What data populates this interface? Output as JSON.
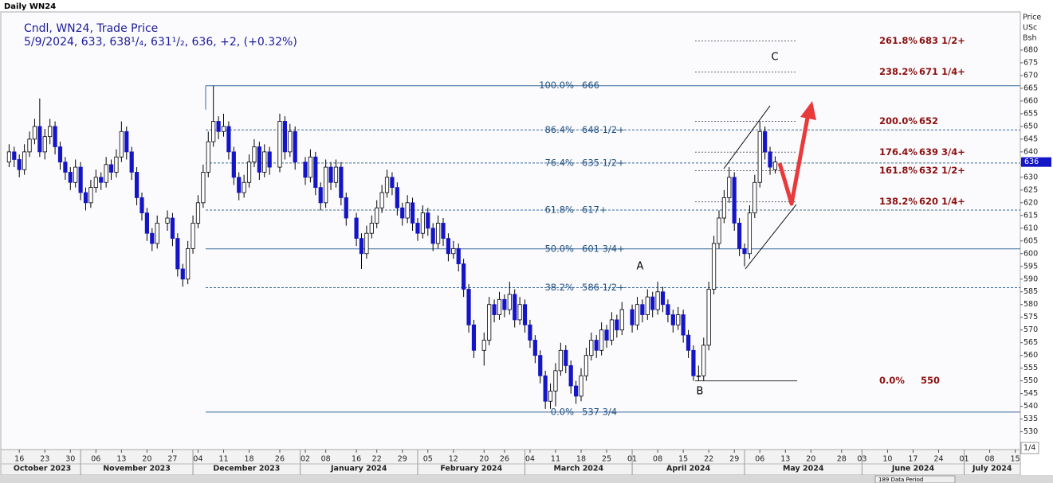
{
  "chart_data": {
    "type": "candlestick",
    "title": "Daily WN24",
    "legend": [
      "Cndl, WN24, Trade Price",
      "5/9/2024, 633, 638¹/₄, 631¹/₂, 636, +2, (+0.32%)"
    ],
    "axis_header": [
      "Price",
      "USc",
      "Bsh"
    ],
    "footer": [
      "1/4",
      "189 Data Period"
    ],
    "up_color": "#ffffff",
    "down_color": "#1515c8",
    "ylim": [
      523,
      695
    ],
    "yticks": [
      530,
      535,
      540,
      545,
      550,
      555,
      560,
      565,
      570,
      575,
      580,
      585,
      590,
      595,
      600,
      605,
      610,
      615,
      620,
      625,
      630,
      635,
      640,
      645,
      650,
      655,
      660,
      665,
      670,
      675,
      680
    ],
    "xlim": [
      "2023-10-11",
      "2024-07-16"
    ],
    "xticks": [
      {
        "value": "2023-10-16",
        "label": "16"
      },
      {
        "value": "2023-10-23",
        "label": "23"
      },
      {
        "value": "2023-10-30",
        "label": "30"
      },
      {
        "value": "2023-11-06",
        "label": "06"
      },
      {
        "value": "2023-11-13",
        "label": "13"
      },
      {
        "value": "2023-11-20",
        "label": "20"
      },
      {
        "value": "2023-11-27",
        "label": "27"
      },
      {
        "value": "2023-12-04",
        "label": "04"
      },
      {
        "value": "2023-12-11",
        "label": "11"
      },
      {
        "value": "2023-12-18",
        "label": "18"
      },
      {
        "value": "2023-12-26",
        "label": "26"
      },
      {
        "value": "2024-01-02",
        "label": "02"
      },
      {
        "value": "2024-01-08",
        "label": "08"
      },
      {
        "value": "2024-01-16",
        "label": "16"
      },
      {
        "value": "2024-01-22",
        "label": "22"
      },
      {
        "value": "2024-01-29",
        "label": "29"
      },
      {
        "value": "2024-02-05",
        "label": "05"
      },
      {
        "value": "2024-02-12",
        "label": "12"
      },
      {
        "value": "2024-02-20",
        "label": "20"
      },
      {
        "value": "2024-02-26",
        "label": "26"
      },
      {
        "value": "2024-03-04",
        "label": "04"
      },
      {
        "value": "2024-03-11",
        "label": "11"
      },
      {
        "value": "2024-03-18",
        "label": "18"
      },
      {
        "value": "2024-03-25",
        "label": "25"
      },
      {
        "value": "2024-04-01",
        "label": "01"
      },
      {
        "value": "2024-04-08",
        "label": "08"
      },
      {
        "value": "2024-04-15",
        "label": "15"
      },
      {
        "value": "2024-04-22",
        "label": "22"
      },
      {
        "value": "2024-04-29",
        "label": "29"
      },
      {
        "value": "2024-05-06",
        "label": "06"
      },
      {
        "value": "2024-05-13",
        "label": "13"
      },
      {
        "value": "2024-05-20",
        "label": "20"
      },
      {
        "value": "2024-05-28",
        "label": "28"
      },
      {
        "value": "2024-06-03",
        "label": "03"
      },
      {
        "value": "2024-06-10",
        "label": "10"
      },
      {
        "value": "2024-06-17",
        "label": "17"
      },
      {
        "value": "2024-06-24",
        "label": "24"
      },
      {
        "value": "2024-07-01",
        "label": "01"
      },
      {
        "value": "2024-07-08",
        "label": "08"
      },
      {
        "value": "2024-07-15",
        "label": "15"
      }
    ],
    "months": [
      {
        "value": "2023-10",
        "label": "October 2023"
      },
      {
        "value": "2023-11",
        "label": "November 2023"
      },
      {
        "value": "2023-12",
        "label": "December 2023"
      },
      {
        "value": "2024-01",
        "label": "January 2024"
      },
      {
        "value": "2024-02",
        "label": "February 2024"
      },
      {
        "value": "2024-03",
        "label": "March 2024"
      },
      {
        "value": "2024-04",
        "label": "April 2024"
      },
      {
        "value": "2024-05",
        "label": "May 2024"
      },
      {
        "value": "2024-06",
        "label": "June 2024"
      },
      {
        "value": "2024-07",
        "label": "July 2024"
      }
    ],
    "x": [
      "2023-10-12",
      "2023-10-13",
      "2023-10-16",
      "2023-10-17",
      "2023-10-18",
      "2023-10-19",
      "2023-10-20",
      "2023-10-23",
      "2023-10-24",
      "2023-10-25",
      "2023-10-26",
      "2023-10-27",
      "2023-10-30",
      "2023-10-31",
      "2023-11-01",
      "2023-11-02",
      "2023-11-03",
      "2023-11-06",
      "2023-11-07",
      "2023-11-08",
      "2023-11-09",
      "2023-11-10",
      "2023-11-13",
      "2023-11-14",
      "2023-11-15",
      "2023-11-16",
      "2023-11-17",
      "2023-11-20",
      "2023-11-21",
      "2023-11-22",
      "2023-11-24",
      "2023-11-27",
      "2023-11-28",
      "2023-11-29",
      "2023-11-30",
      "2023-12-01",
      "2023-12-04",
      "2023-12-05",
      "2023-12-06",
      "2023-12-07",
      "2023-12-08",
      "2023-12-11",
      "2023-12-12",
      "2023-12-13",
      "2023-12-14",
      "2023-12-15",
      "2023-12-18",
      "2023-12-19",
      "2023-12-20",
      "2023-12-21",
      "2023-12-22",
      "2023-12-26",
      "2023-12-27",
      "2023-12-28",
      "2023-12-29",
      "2024-01-02",
      "2024-01-03",
      "2024-01-04",
      "2024-01-05",
      "2024-01-08",
      "2024-01-09",
      "2024-01-10",
      "2024-01-11",
      "2024-01-12",
      "2024-01-16",
      "2024-01-17",
      "2024-01-18",
      "2024-01-19",
      "2024-01-22",
      "2024-01-23",
      "2024-01-24",
      "2024-01-25",
      "2024-01-26",
      "2024-01-29",
      "2024-01-30",
      "2024-01-31",
      "2024-02-01",
      "2024-02-02",
      "2024-02-05",
      "2024-02-06",
      "2024-02-07",
      "2024-02-08",
      "2024-02-09",
      "2024-02-12",
      "2024-02-13",
      "2024-02-14",
      "2024-02-15",
      "2024-02-16",
      "2024-02-20",
      "2024-02-21",
      "2024-02-22",
      "2024-02-23",
      "2024-02-26",
      "2024-02-27",
      "2024-02-28",
      "2024-02-29",
      "2024-03-01",
      "2024-03-04",
      "2024-03-05",
      "2024-03-06",
      "2024-03-07",
      "2024-03-08",
      "2024-03-11",
      "2024-03-12",
      "2024-03-13",
      "2024-03-14",
      "2024-03-15",
      "2024-03-18",
      "2024-03-19",
      "2024-03-20",
      "2024-03-21",
      "2024-03-22",
      "2024-03-25",
      "2024-03-26",
      "2024-03-27",
      "2024-03-28",
      "2024-04-01",
      "2024-04-02",
      "2024-04-03",
      "2024-04-04",
      "2024-04-05",
      "2024-04-08",
      "2024-04-09",
      "2024-04-10",
      "2024-04-11",
      "2024-04-12",
      "2024-04-15",
      "2024-04-16",
      "2024-04-17",
      "2024-04-18",
      "2024-04-19",
      "2024-04-22",
      "2024-04-23",
      "2024-04-24",
      "2024-04-25",
      "2024-04-26",
      "2024-04-29",
      "2024-04-30",
      "2024-05-01",
      "2024-05-02",
      "2024-05-03",
      "2024-05-06",
      "2024-05-07",
      "2024-05-08",
      "2024-05-09"
    ],
    "ohlc": [
      [
        636,
        643,
        634,
        640
      ],
      [
        640,
        642,
        634,
        637
      ],
      [
        637,
        639,
        630,
        633
      ],
      [
        633,
        643,
        631,
        640
      ],
      [
        640,
        648,
        638,
        645
      ],
      [
        645,
        653,
        643,
        650
      ],
      [
        650,
        661,
        638,
        640
      ],
      [
        640,
        649,
        637,
        646
      ],
      [
        646,
        653,
        643,
        650
      ],
      [
        650,
        652,
        639,
        642
      ],
      [
        642,
        644,
        633,
        636
      ],
      [
        636,
        638,
        629,
        632
      ],
      [
        632,
        634,
        625,
        628
      ],
      [
        628,
        637,
        626,
        634
      ],
      [
        634,
        636,
        621,
        624
      ],
      [
        624,
        626,
        617,
        620
      ],
      [
        620,
        629,
        618,
        626
      ],
      [
        626,
        633,
        624,
        630
      ],
      [
        630,
        632,
        625,
        628
      ],
      [
        628,
        638,
        626,
        635
      ],
      [
        635,
        637,
        629,
        632
      ],
      [
        632,
        641,
        630,
        638
      ],
      [
        638,
        652,
        636,
        648
      ],
      [
        648,
        650,
        637,
        640
      ],
      [
        640,
        642,
        629,
        632
      ],
      [
        632,
        634,
        619,
        622
      ],
      [
        622,
        624,
        613,
        616
      ],
      [
        616,
        618,
        605,
        608
      ],
      [
        608,
        610,
        601,
        604
      ],
      [
        604,
        615,
        602,
        612
      ],
      [
        612,
        617,
        609,
        614
      ],
      [
        614,
        616,
        603,
        606
      ],
      [
        606,
        608,
        591,
        594
      ],
      [
        594,
        596,
        587,
        590
      ],
      [
        590,
        605,
        588,
        602
      ],
      [
        602,
        615,
        600,
        612
      ],
      [
        612,
        623,
        610,
        620
      ],
      [
        620,
        635,
        618,
        632
      ],
      [
        632,
        648,
        630,
        644
      ],
      [
        644,
        666,
        642,
        652
      ],
      [
        652,
        654,
        645,
        648
      ],
      [
        648,
        655,
        646,
        650
      ],
      [
        650,
        652,
        637,
        640
      ],
      [
        640,
        642,
        627,
        630
      ],
      [
        630,
        632,
        621,
        624
      ],
      [
        624,
        631,
        622,
        628
      ],
      [
        628,
        639,
        626,
        636
      ],
      [
        636,
        645,
        634,
        642
      ],
      [
        642,
        644,
        629,
        632
      ],
      [
        632,
        643,
        630,
        640
      ],
      [
        640,
        642,
        631,
        634
      ],
      [
        634,
        655,
        632,
        652
      ],
      [
        652,
        654,
        637,
        640
      ],
      [
        640,
        651,
        638,
        648
      ],
      [
        648,
        650,
        633,
        636
      ],
      [
        636,
        638,
        627,
        630
      ],
      [
        630,
        641,
        628,
        638
      ],
      [
        638,
        640,
        623,
        626
      ],
      [
        626,
        628,
        617,
        620
      ],
      [
        620,
        637,
        618,
        634
      ],
      [
        634,
        636,
        625,
        628
      ],
      [
        628,
        637,
        626,
        634
      ],
      [
        634,
        636,
        619,
        622
      ],
      [
        622,
        624,
        611,
        614
      ],
      [
        614,
        616,
        603,
        606
      ],
      [
        606,
        608,
        594,
        600
      ],
      [
        600,
        611,
        598,
        608
      ],
      [
        608,
        615,
        606,
        612
      ],
      [
        612,
        621,
        610,
        618
      ],
      [
        618,
        627,
        616,
        624
      ],
      [
        624,
        633,
        622,
        630
      ],
      [
        630,
        632,
        623,
        626
      ],
      [
        626,
        628,
        615,
        618
      ],
      [
        618,
        620,
        611,
        614
      ],
      [
        614,
        623,
        612,
        620
      ],
      [
        620,
        622,
        609,
        612
      ],
      [
        612,
        614,
        605,
        608
      ],
      [
        608,
        619,
        606,
        616
      ],
      [
        616,
        618,
        607,
        610
      ],
      [
        610,
        612,
        601,
        604
      ],
      [
        604,
        615,
        602,
        612
      ],
      [
        612,
        614,
        603,
        606
      ],
      [
        606,
        608,
        597,
        600
      ],
      [
        600,
        605,
        598,
        602
      ],
      [
        602,
        604,
        593,
        596
      ],
      [
        596,
        598,
        583,
        586
      ],
      [
        586,
        588,
        569,
        572
      ],
      [
        572,
        574,
        559,
        562
      ],
      [
        562,
        569,
        556,
        566
      ],
      [
        566,
        583,
        564,
        580
      ],
      [
        580,
        582,
        573,
        576
      ],
      [
        576,
        585,
        574,
        582
      ],
      [
        582,
        584,
        575,
        578
      ],
      [
        578,
        589,
        576,
        584
      ],
      [
        584,
        586,
        571,
        574
      ],
      [
        574,
        583,
        572,
        580
      ],
      [
        580,
        582,
        569,
        572
      ],
      [
        572,
        574,
        563,
        566
      ],
      [
        566,
        568,
        557,
        560
      ],
      [
        560,
        562,
        549,
        552
      ],
      [
        552,
        554,
        539,
        542
      ],
      [
        542,
        549,
        539,
        546
      ],
      [
        546,
        557,
        540,
        554
      ],
      [
        554,
        565,
        552,
        562
      ],
      [
        562,
        564,
        553,
        556
      ],
      [
        556,
        558,
        545,
        548
      ],
      [
        548,
        550,
        541,
        544
      ],
      [
        544,
        555,
        542,
        552
      ],
      [
        552,
        563,
        550,
        560
      ],
      [
        560,
        569,
        558,
        566
      ],
      [
        566,
        568,
        559,
        562
      ],
      [
        562,
        573,
        560,
        570
      ],
      [
        570,
        572,
        563,
        566
      ],
      [
        566,
        577,
        564,
        574
      ],
      [
        574,
        576,
        567,
        570
      ],
      [
        570,
        581,
        568,
        578
      ],
      [
        578,
        580,
        569,
        572
      ],
      [
        572,
        583,
        570,
        580
      ],
      [
        580,
        582,
        573,
        576
      ],
      [
        576,
        586,
        574,
        583
      ],
      [
        583,
        585,
        575,
        578
      ],
      [
        578,
        589,
        576,
        585
      ],
      [
        585,
        587,
        577,
        580
      ],
      [
        580,
        582,
        573,
        576
      ],
      [
        576,
        578,
        569,
        572
      ],
      [
        572,
        579,
        570,
        576
      ],
      [
        576,
        578,
        565,
        568
      ],
      [
        568,
        570,
        559,
        562
      ],
      [
        562,
        564,
        550,
        552
      ],
      [
        552,
        556,
        550,
        552
      ],
      [
        552,
        567,
        550,
        564
      ],
      [
        564,
        589,
        562,
        586
      ],
      [
        586,
        607,
        584,
        604
      ],
      [
        604,
        617,
        602,
        614
      ],
      [
        614,
        625,
        612,
        622
      ],
      [
        622,
        634,
        620,
        630
      ],
      [
        630,
        632,
        609,
        612
      ],
      [
        612,
        614,
        599,
        602
      ],
      [
        602,
        604,
        595,
        600
      ],
      [
        600,
        619,
        598,
        616
      ],
      [
        616,
        631,
        614,
        628
      ],
      [
        628,
        652,
        626,
        648
      ],
      [
        648,
        650,
        637,
        640
      ],
      [
        640,
        642,
        631,
        634
      ],
      [
        633,
        638.25,
        631.5,
        636
      ]
    ],
    "retracements": [
      {
        "pct": "100.0%",
        "value": 666,
        "style": "solid"
      },
      {
        "pct": "86.4%",
        "value": 648.625,
        "value_label": "648 1/2+",
        "style": "dashed"
      },
      {
        "pct": "76.4%",
        "value": 635.625,
        "value_label": "635 1/2+",
        "style": "dashed"
      },
      {
        "pct": "61.8%",
        "value": 617.125,
        "value_label": "617+",
        "style": "dashed"
      },
      {
        "pct": "50.0%",
        "value": 601.875,
        "value_label": "601 3/4+",
        "style": "solid"
      },
      {
        "pct": "38.2%",
        "value": 586.625,
        "value_label": "586 1/2+",
        "style": "dashed"
      },
      {
        "pct": "0.0%",
        "value": 537.75,
        "value_label": "537 3/4",
        "style": "solid"
      }
    ],
    "extensions": [
      {
        "pct": "261.8%",
        "value": 683.625,
        "value_label": "683 1/2+",
        "style": "dashed"
      },
      {
        "pct": "238.2%",
        "value": 671.375,
        "value_label": "671 1/4+",
        "style": "dashed"
      },
      {
        "pct": "200.0%",
        "value": 652,
        "style": "dashed"
      },
      {
        "pct": "176.4%",
        "value": 639.875,
        "value_label": "639 3/4+",
        "style": "dashed"
      },
      {
        "pct": "161.8%",
        "value": 632.625,
        "value_label": "632 1/2+",
        "style": "dashed"
      },
      {
        "pct": "138.2%",
        "value": 620.375,
        "value_label": "620 1/4+",
        "style": "dashed"
      },
      {
        "pct": "0.0%",
        "value": 550,
        "style": "solid"
      }
    ],
    "annotations": [
      "A",
      "B",
      "C"
    ]
  }
}
